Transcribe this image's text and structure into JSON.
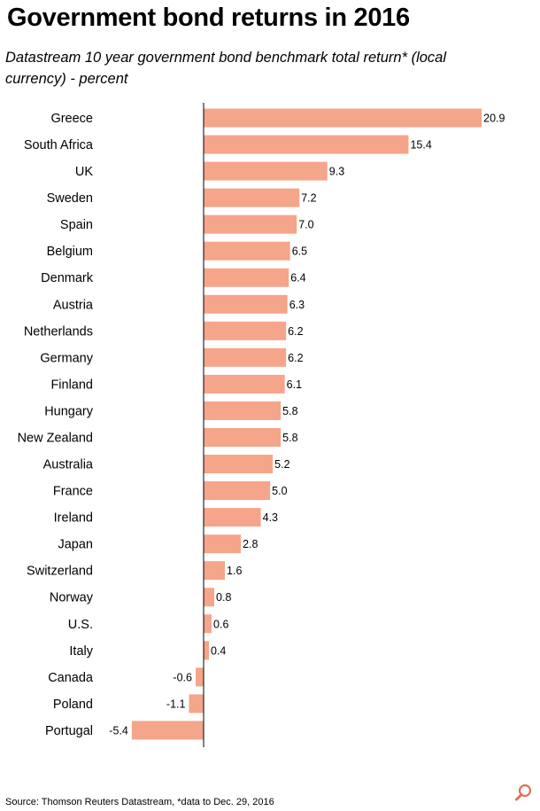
{
  "title": "Government bond returns in 2016",
  "subtitle": "Datastream 10 year government bond benchmark total return* (local currency) - percent",
  "source": "Source: Thomson Reuters Datastream, *data to Dec. 29, 2016",
  "colors": {
    "bar": "#f5a58a",
    "axis": "#000000"
  },
  "icons": {
    "zoom": "magnifier-icon"
  },
  "chart_data": {
    "type": "bar",
    "orientation": "horizontal",
    "categories": [
      "Greece",
      "South Africa",
      "UK",
      "Sweden",
      "Spain",
      "Belgium",
      "Denmark",
      "Austria",
      "Netherlands",
      "Germany",
      "Finland",
      "Hungary",
      "New Zealand",
      "Australia",
      "France",
      "Ireland",
      "Japan",
      "Switzerland",
      "Norway",
      "U.S.",
      "Italy",
      "Canada",
      "Poland",
      "Portugal"
    ],
    "values": [
      20.9,
      15.4,
      9.3,
      7.2,
      7.0,
      6.5,
      6.4,
      6.3,
      6.2,
      6.2,
      6.1,
      5.8,
      5.8,
      5.2,
      5.0,
      4.3,
      2.8,
      1.6,
      0.8,
      0.6,
      0.4,
      -0.6,
      -1.1,
      -5.4
    ],
    "labels": [
      "20.9",
      "15.4",
      "9.3",
      "7.2",
      "7.0",
      "6.5",
      "6.4",
      "6.3",
      "6.2",
      "6.2",
      "6.1",
      "5.8",
      "5.8",
      "5.2",
      "5.0",
      "4.3",
      "2.8",
      "1.6",
      "0.8",
      "0.6",
      "0.4",
      "-0.6",
      "-1.1",
      "-5.4"
    ],
    "xlim": [
      -5.4,
      20.9
    ],
    "grid": false,
    "legend": "none"
  }
}
